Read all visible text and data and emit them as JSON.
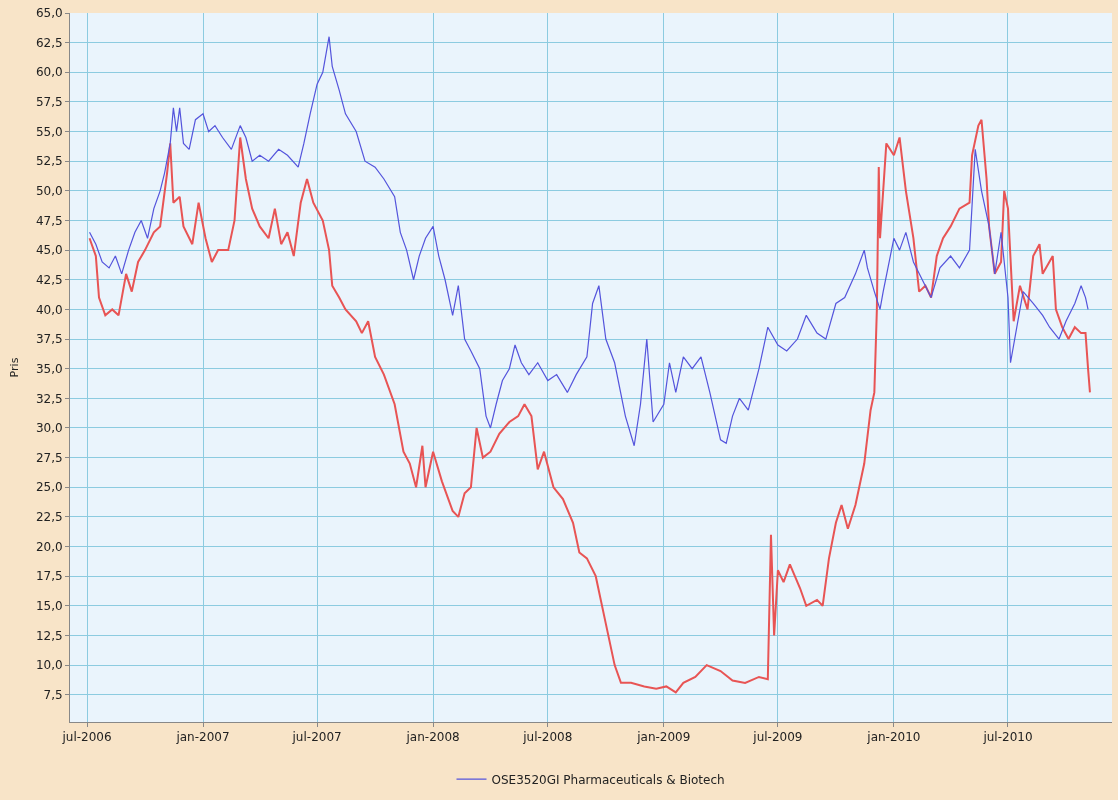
{
  "chart_data": {
    "type": "line",
    "ylabel": "Pris",
    "legend": "bottom",
    "grid": true,
    "marker": "none",
    "line_style": "solid",
    "xlim": [
      "2006-06-04",
      "2010-12-13"
    ],
    "xticks": [
      {
        "value": "2006-07-01",
        "label": "jul-2006"
      },
      {
        "value": "2007-01-01",
        "label": "jan-2007"
      },
      {
        "value": "2007-07-01",
        "label": "jul-2007"
      },
      {
        "value": "2008-01-01",
        "label": "jan-2008"
      },
      {
        "value": "2008-07-01",
        "label": "jul-2008"
      },
      {
        "value": "2009-01-01",
        "label": "jan-2009"
      },
      {
        "value": "2009-07-01",
        "label": "jul-2009"
      },
      {
        "value": "2010-01-01",
        "label": "jan-2010"
      },
      {
        "value": "2010-07-01",
        "label": "jul-2010"
      }
    ],
    "ylim": [
      5.2,
      65
    ],
    "yticks": [
      {
        "value": 7.5,
        "label": "7,5"
      },
      {
        "value": 10,
        "label": "10,0"
      },
      {
        "value": 12.5,
        "label": "12,5"
      },
      {
        "value": 15,
        "label": "15,0"
      },
      {
        "value": 17.5,
        "label": "17,5"
      },
      {
        "value": 20,
        "label": "20,0"
      },
      {
        "value": 22.5,
        "label": "22,5"
      },
      {
        "value": 25,
        "label": "25,0"
      },
      {
        "value": 27.5,
        "label": "27,5"
      },
      {
        "value": 30,
        "label": "30,0"
      },
      {
        "value": 32.5,
        "label": "32,5"
      },
      {
        "value": 35,
        "label": "35,0"
      },
      {
        "value": 37.5,
        "label": "37,5"
      },
      {
        "value": 40,
        "label": "40,0"
      },
      {
        "value": 42.5,
        "label": "42,5"
      },
      {
        "value": 45,
        "label": "45,0"
      },
      {
        "value": 47.5,
        "label": "47,5"
      },
      {
        "value": 50,
        "label": "50,0"
      },
      {
        "value": 52.5,
        "label": "52,5"
      },
      {
        "value": 55,
        "label": "55,0"
      },
      {
        "value": 57.5,
        "label": "57,5"
      },
      {
        "value": 60,
        "label": "60,0"
      },
      {
        "value": 62.5,
        "label": "62,5"
      },
      {
        "value": 65,
        "label": "65,0"
      }
    ],
    "series": [
      {
        "color": "#e85454",
        "x": [
          "2006-07-05",
          "2006-07-15",
          "2006-07-20",
          "2006-07-30",
          "2006-08-10",
          "2006-08-20",
          "2006-09-01",
          "2006-09-10",
          "2006-09-20",
          "2006-10-01",
          "2006-10-15",
          "2006-10-25",
          "2006-11-05",
          "2006-11-10",
          "2006-11-15",
          "2006-11-25",
          "2006-12-01",
          "2006-12-15",
          "2006-12-25",
          "2007-01-05",
          "2007-01-15",
          "2007-01-25",
          "2007-02-10",
          "2007-02-20",
          "2007-03-01",
          "2007-03-10",
          "2007-03-20",
          "2007-04-01",
          "2007-04-15",
          "2007-04-25",
          "2007-05-05",
          "2007-05-15",
          "2007-05-25",
          "2007-06-05",
          "2007-06-15",
          "2007-06-25",
          "2007-07-10",
          "2007-07-20",
          "2007-07-25",
          "2007-08-05",
          "2007-08-15",
          "2007-09-01",
          "2007-09-10",
          "2007-09-20",
          "2007-10-01",
          "2007-10-15",
          "2007-11-01",
          "2007-11-15",
          "2007-11-25",
          "2007-12-05",
          "2007-12-15",
          "2007-12-20",
          "2008-01-01",
          "2008-01-15",
          "2008-02-01",
          "2008-02-10",
          "2008-02-20",
          "2008-03-01",
          "2008-03-10",
          "2008-03-20",
          "2008-04-01",
          "2008-04-15",
          "2008-05-01",
          "2008-05-15",
          "2008-05-25",
          "2008-06-05",
          "2008-06-15",
          "2008-06-25",
          "2008-07-10",
          "2008-07-25",
          "2008-08-10",
          "2008-08-20",
          "2008-09-01",
          "2008-09-15",
          "2008-10-01",
          "2008-10-15",
          "2008-10-25",
          "2008-11-10",
          "2008-12-01",
          "2008-12-20",
          "2009-01-05",
          "2009-01-20",
          "2009-02-01",
          "2009-02-20",
          "2009-03-10",
          "2009-04-01",
          "2009-04-20",
          "2009-05-10",
          "2009-06-01",
          "2009-06-15",
          "2009-06-20",
          "2009-06-25",
          "2009-07-01",
          "2009-07-10",
          "2009-07-20",
          "2009-08-05",
          "2009-08-15",
          "2009-09-01",
          "2009-09-10",
          "2009-09-20",
          "2009-10-01",
          "2009-10-10",
          "2009-10-20",
          "2009-11-01",
          "2009-11-15",
          "2009-11-25",
          "2009-12-01",
          "2009-12-05",
          "2009-12-08",
          "2009-12-10",
          "2009-12-20",
          "2010-01-01",
          "2010-01-10",
          "2010-01-20",
          "2010-02-01",
          "2010-02-10",
          "2010-02-20",
          "2010-03-01",
          "2010-03-10",
          "2010-03-20",
          "2010-04-01",
          "2010-04-15",
          "2010-05-01",
          "2010-05-05",
          "2010-05-15",
          "2010-05-20",
          "2010-05-28",
          "2010-06-01",
          "2010-06-10",
          "2010-06-20",
          "2010-06-25",
          "2010-07-01",
          "2010-07-10",
          "2010-07-20",
          "2010-08-01",
          "2010-08-10",
          "2010-08-20",
          "2010-08-25",
          "2010-09-10",
          "2010-09-15",
          "2010-09-25",
          "2010-10-05",
          "2010-10-15",
          "2010-10-25",
          "2010-11-01",
          "2010-11-05",
          "2010-11-08"
        ],
        "values": [
          46.0,
          44.5,
          41.0,
          39.5,
          40.0,
          39.5,
          43.0,
          41.5,
          44.0,
          45.0,
          46.5,
          47.0,
          51.5,
          54.0,
          49.0,
          49.5,
          47.0,
          45.5,
          49.0,
          46.0,
          44.0,
          45.0,
          45.0,
          47.5,
          54.5,
          51.0,
          48.5,
          47.0,
          46.0,
          48.5,
          45.5,
          46.5,
          44.5,
          49.0,
          51.0,
          49.0,
          47.5,
          45.0,
          42.0,
          41.0,
          40.0,
          39.0,
          38.0,
          39.0,
          36.0,
          34.5,
          32.0,
          28.0,
          27.0,
          25.0,
          28.5,
          25.0,
          28.0,
          25.5,
          23.0,
          22.5,
          24.5,
          25.0,
          30.0,
          27.5,
          28.0,
          29.5,
          30.5,
          31.0,
          32.0,
          31.0,
          26.5,
          28.0,
          25.0,
          24.0,
          22.0,
          19.5,
          19.0,
          17.5,
          13.5,
          10.0,
          8.5,
          8.5,
          8.2,
          8.0,
          8.2,
          7.7,
          8.5,
          9.0,
          10.0,
          9.5,
          8.7,
          8.5,
          9.0,
          8.8,
          21.0,
          12.5,
          18.0,
          17.0,
          18.5,
          16.5,
          15.0,
          15.5,
          15.0,
          19.0,
          22.0,
          23.5,
          21.5,
          23.5,
          27.0,
          31.5,
          33.0,
          40.0,
          52.0,
          46.0,
          54.0,
          53.0,
          54.5,
          50.0,
          46.0,
          41.5,
          42.0,
          41.0,
          44.5,
          46.0,
          47.0,
          48.5,
          49.0,
          53.0,
          55.5,
          56.0,
          51.0,
          47.0,
          43.0,
          44.0,
          50.0,
          48.5,
          39.0,
          42.0,
          40.0,
          44.5,
          45.5,
          43.0,
          44.5,
          40.0,
          38.5,
          37.5,
          38.5,
          38.0,
          38.0,
          35.0,
          33.0
        ]
      },
      {
        "name": "OSE3520GI Pharmaceuticals & Biotech",
        "color": "#5454dc",
        "x": [
          "2006-07-05",
          "2006-07-15",
          "2006-07-25",
          "2006-08-05",
          "2006-08-15",
          "2006-08-25",
          "2006-09-05",
          "2006-09-15",
          "2006-09-25",
          "2006-10-05",
          "2006-10-15",
          "2006-10-25",
          "2006-11-01",
          "2006-11-10",
          "2006-11-15",
          "2006-11-20",
          "2006-11-25",
          "2006-12-01",
          "2006-12-10",
          "2006-12-20",
          "2007-01-01",
          "2007-01-10",
          "2007-01-20",
          "2007-02-01",
          "2007-02-15",
          "2007-03-01",
          "2007-03-10",
          "2007-03-20",
          "2007-04-01",
          "2007-04-15",
          "2007-05-01",
          "2007-05-15",
          "2007-06-01",
          "2007-06-10",
          "2007-06-20",
          "2007-07-01",
          "2007-07-10",
          "2007-07-20",
          "2007-07-25",
          "2007-08-05",
          "2007-08-15",
          "2007-09-01",
          "2007-09-15",
          "2007-10-01",
          "2007-10-15",
          "2007-11-01",
          "2007-11-10",
          "2007-11-20",
          "2007-12-01",
          "2007-12-10",
          "2007-12-20",
          "2008-01-01",
          "2008-01-10",
          "2008-01-20",
          "2008-02-01",
          "2008-02-10",
          "2008-02-20",
          "2008-03-01",
          "2008-03-15",
          "2008-03-25",
          "2008-04-01",
          "2008-04-10",
          "2008-04-20",
          "2008-05-01",
          "2008-05-10",
          "2008-05-20",
          "2008-06-01",
          "2008-06-15",
          "2008-07-01",
          "2008-07-15",
          "2008-08-01",
          "2008-08-15",
          "2008-09-01",
          "2008-09-10",
          "2008-09-20",
          "2008-10-01",
          "2008-10-15",
          "2008-11-01",
          "2008-11-15",
          "2008-11-25",
          "2008-12-05",
          "2008-12-15",
          "2009-01-01",
          "2009-01-10",
          "2009-01-20",
          "2009-02-01",
          "2009-02-15",
          "2009-03-01",
          "2009-03-15",
          "2009-04-01",
          "2009-04-10",
          "2009-04-20",
          "2009-05-01",
          "2009-05-15",
          "2009-06-01",
          "2009-06-15",
          "2009-07-01",
          "2009-07-15",
          "2009-08-01",
          "2009-08-15",
          "2009-09-01",
          "2009-09-15",
          "2009-10-01",
          "2009-10-15",
          "2009-11-01",
          "2009-11-15",
          "2009-11-20",
          "2009-12-01",
          "2009-12-10",
          "2009-12-15",
          "2010-01-01",
          "2010-01-10",
          "2010-01-20",
          "2010-02-01",
          "2010-02-15",
          "2010-03-01",
          "2010-03-15",
          "2010-04-01",
          "2010-04-15",
          "2010-05-01",
          "2010-05-10",
          "2010-05-20",
          "2010-06-01",
          "2010-06-10",
          "2010-06-20",
          "2010-07-01",
          "2010-07-05",
          "2010-07-15",
          "2010-07-25",
          "2010-08-10",
          "2010-08-25",
          "2010-09-05",
          "2010-09-20",
          "2010-10-01",
          "2010-10-15",
          "2010-10-25",
          "2010-11-01",
          "2010-11-05"
        ],
        "values": [
          46.5,
          45.5,
          44.0,
          43.5,
          44.5,
          43.0,
          45.0,
          46.5,
          47.5,
          46.0,
          48.5,
          50.0,
          51.5,
          54.0,
          57.0,
          55.0,
          57.0,
          54.0,
          53.5,
          56.0,
          56.5,
          55.0,
          55.5,
          54.5,
          53.5,
          55.5,
          54.5,
          52.5,
          53.0,
          52.5,
          53.5,
          53.0,
          52.0,
          54.0,
          56.5,
          59.0,
          60.0,
          63.0,
          60.5,
          58.5,
          56.5,
          55.0,
          52.5,
          52.0,
          51.0,
          49.5,
          46.5,
          45.0,
          42.5,
          44.5,
          46.0,
          47.0,
          44.5,
          42.5,
          39.5,
          42.0,
          37.5,
          36.5,
          35.0,
          31.0,
          30.0,
          32.0,
          34.0,
          35.0,
          37.0,
          35.5,
          34.5,
          35.5,
          34.0,
          34.5,
          33.0,
          34.5,
          36.0,
          40.5,
          42.0,
          37.5,
          35.5,
          31.0,
          28.5,
          32.0,
          37.5,
          30.5,
          32.0,
          35.5,
          33.0,
          36.0,
          35.0,
          36.0,
          33.0,
          29.0,
          28.7,
          31.0,
          32.5,
          31.5,
          35.0,
          38.5,
          37.0,
          36.5,
          37.5,
          39.5,
          38.0,
          37.5,
          40.5,
          41.0,
          43.0,
          45.0,
          43.5,
          41.5,
          40.0,
          41.5,
          46.0,
          45.0,
          46.5,
          44.0,
          42.5,
          41.0,
          43.5,
          44.5,
          43.5,
          45.0,
          53.5,
          50.0,
          47.0,
          43.0,
          46.5,
          41.0,
          35.5,
          38.5,
          41.5,
          40.5,
          39.5,
          38.5,
          37.5,
          39.0,
          40.5,
          42.0,
          41.0,
          40.0
        ]
      }
    ]
  }
}
